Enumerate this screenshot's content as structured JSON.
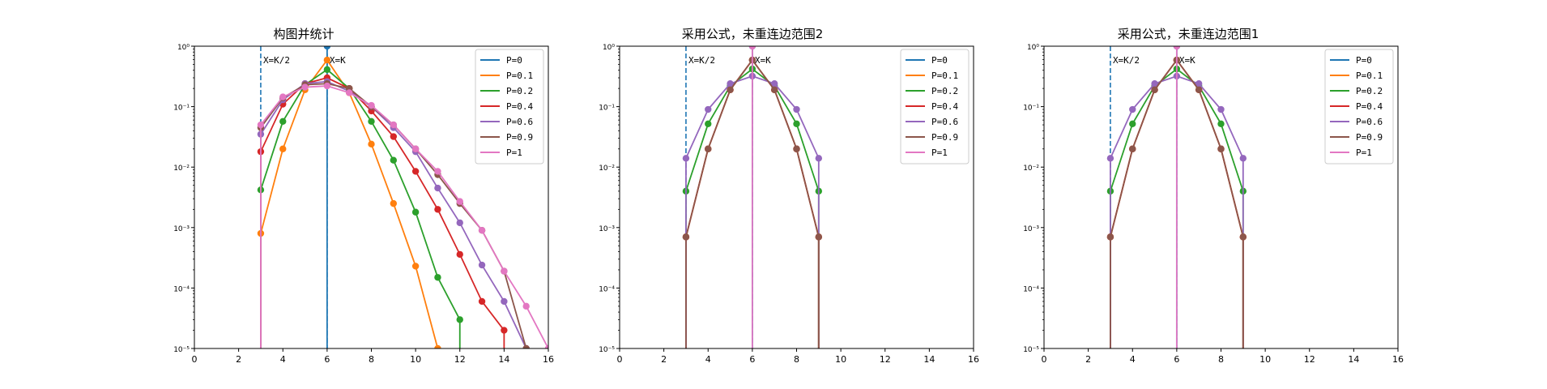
{
  "figure": {
    "background": "#ffffff"
  },
  "chart_data": [
    {
      "type": "line",
      "title": "构图并统计",
      "xlim": [
        0,
        16
      ],
      "y_scale": "log",
      "ylim": [
        1e-05,
        1
      ],
      "xticks": [
        "0",
        "2",
        "4",
        "6",
        "8",
        "10",
        "12",
        "14",
        "16"
      ],
      "yticks": [
        "10⁰",
        "10⁻¹",
        "10⁻²",
        "10⁻³",
        "10⁻⁴",
        "10⁻⁵"
      ],
      "vlines": [
        {
          "x": 3,
          "label": "X=K/2"
        },
        {
          "x": 6,
          "label": "X=K"
        }
      ],
      "legend_position": "upper right",
      "series": [
        {
          "name": "P=0",
          "color": "#1f77b4",
          "x": [
            6
          ],
          "y": [
            1.0
          ]
        },
        {
          "name": "P=0.1",
          "color": "#ff7f0e",
          "x": [
            3,
            4,
            5,
            6,
            7,
            8,
            9,
            10,
            11
          ],
          "y": [
            0.0008,
            0.02,
            0.19,
            0.59,
            0.17,
            0.024,
            0.0025,
            0.00023,
            1e-05
          ]
        },
        {
          "name": "P=0.2",
          "color": "#2ca02c",
          "x": [
            3,
            4,
            5,
            6,
            7,
            8,
            9,
            10,
            11,
            12
          ],
          "y": [
            0.0042,
            0.057,
            0.23,
            0.41,
            0.2,
            0.057,
            0.013,
            0.0018,
            0.00015,
            3e-05
          ]
        },
        {
          "name": "P=0.4",
          "color": "#d62728",
          "x": [
            3,
            4,
            5,
            6,
            7,
            8,
            9,
            10,
            11,
            12,
            13,
            14
          ],
          "y": [
            0.018,
            0.11,
            0.24,
            0.3,
            0.2,
            0.085,
            0.032,
            0.0085,
            0.002,
            0.00036,
            6e-05,
            2e-05
          ]
        },
        {
          "name": "P=0.6",
          "color": "#9467bd",
          "x": [
            3,
            4,
            5,
            6,
            7,
            8,
            9,
            10,
            11,
            12,
            13,
            14,
            15
          ],
          "y": [
            0.035,
            0.13,
            0.24,
            0.26,
            0.18,
            0.1,
            0.045,
            0.018,
            0.0045,
            0.0012,
            0.00024,
            6e-05,
            1e-05
          ]
        },
        {
          "name": "P=0.9",
          "color": "#8c564b",
          "x": [
            3,
            4,
            5,
            6,
            7,
            8,
            9,
            10,
            11,
            12,
            13,
            14,
            15
          ],
          "y": [
            0.045,
            0.14,
            0.23,
            0.24,
            0.2,
            0.1,
            0.05,
            0.02,
            0.0075,
            0.0025,
            0.0009,
            0.00019,
            1e-05
          ]
        },
        {
          "name": "P=1",
          "color": "#e377c2",
          "x": [
            3,
            4,
            5,
            6,
            7,
            8,
            9,
            10,
            11,
            12,
            13,
            14,
            15,
            16
          ],
          "y": [
            0.05,
            0.145,
            0.21,
            0.22,
            0.17,
            0.105,
            0.05,
            0.02,
            0.0085,
            0.0027,
            0.0009,
            0.00019,
            5e-05,
            1e-05
          ]
        }
      ]
    },
    {
      "type": "line",
      "title": "采用公式，未重连边范围2",
      "xlim": [
        0,
        16
      ],
      "y_scale": "log",
      "ylim": [
        1e-05,
        1
      ],
      "xticks": [
        "0",
        "2",
        "4",
        "6",
        "8",
        "10",
        "12",
        "14",
        "16"
      ],
      "yticks": [
        "10⁰",
        "10⁻¹",
        "10⁻²",
        "10⁻³",
        "10⁻⁴",
        "10⁻⁵"
      ],
      "vlines": [
        {
          "x": 3,
          "label": "X=K/2"
        },
        {
          "x": 6,
          "label": "X=K"
        }
      ],
      "legend_position": "upper right",
      "series": [
        {
          "name": "P=0",
          "color": "#1f77b4",
          "x": [
            6
          ],
          "y": [
            1.0
          ]
        },
        {
          "name": "P=0.1",
          "color": "#ff7f0e",
          "x": [
            3,
            4,
            5,
            6,
            7,
            8,
            9
          ],
          "y": [
            0.0007,
            0.02,
            0.19,
            0.59,
            0.19,
            0.02,
            0.0007
          ]
        },
        {
          "name": "P=0.2",
          "color": "#2ca02c",
          "x": [
            3,
            4,
            5,
            6,
            7,
            8,
            9
          ],
          "y": [
            0.004,
            0.052,
            0.22,
            0.42,
            0.22,
            0.052,
            0.004
          ]
        },
        {
          "name": "P=0.4",
          "color": "#d62728",
          "x": [
            3,
            4,
            5,
            6,
            7,
            8,
            9
          ],
          "y": [
            0.0007,
            0.02,
            0.19,
            0.59,
            0.19,
            0.02,
            0.0007
          ]
        },
        {
          "name": "P=0.6",
          "color": "#9467bd",
          "x": [
            3,
            4,
            5,
            6,
            7,
            8,
            9
          ],
          "y": [
            0.014,
            0.09,
            0.24,
            0.32,
            0.24,
            0.09,
            0.014
          ]
        },
        {
          "name": "P=0.9",
          "color": "#8c564b",
          "x": [
            3,
            4,
            5,
            6,
            7,
            8,
            9
          ],
          "y": [
            0.0007,
            0.02,
            0.19,
            0.59,
            0.19,
            0.02,
            0.0007
          ]
        },
        {
          "name": "P=1",
          "color": "#e377c2",
          "x": [
            6
          ],
          "y": [
            1.0
          ]
        }
      ]
    },
    {
      "type": "line",
      "title": "采用公式，未重连边范围1",
      "xlim": [
        0,
        16
      ],
      "y_scale": "log",
      "ylim": [
        1e-05,
        1
      ],
      "xticks": [
        "0",
        "2",
        "4",
        "6",
        "8",
        "10",
        "12",
        "14",
        "16"
      ],
      "yticks": [
        "10⁰",
        "10⁻¹",
        "10⁻²",
        "10⁻³",
        "10⁻⁴",
        "10⁻⁵"
      ],
      "vlines": [
        {
          "x": 3,
          "label": "X=K/2"
        },
        {
          "x": 6,
          "label": "X=K"
        }
      ],
      "legend_position": "upper right",
      "series": [
        {
          "name": "P=0",
          "color": "#1f77b4",
          "x": [
            6
          ],
          "y": [
            1.0
          ]
        },
        {
          "name": "P=0.1",
          "color": "#ff7f0e",
          "x": [
            3,
            4,
            5,
            6,
            7,
            8,
            9
          ],
          "y": [
            0.0007,
            0.02,
            0.19,
            0.59,
            0.19,
            0.02,
            0.0007
          ]
        },
        {
          "name": "P=0.2",
          "color": "#2ca02c",
          "x": [
            3,
            4,
            5,
            6,
            7,
            8,
            9
          ],
          "y": [
            0.004,
            0.052,
            0.22,
            0.42,
            0.22,
            0.052,
            0.004
          ]
        },
        {
          "name": "P=0.4",
          "color": "#d62728",
          "x": [
            3,
            4,
            5,
            6,
            7,
            8,
            9
          ],
          "y": [
            0.0007,
            0.02,
            0.19,
            0.59,
            0.19,
            0.02,
            0.0007
          ]
        },
        {
          "name": "P=0.6",
          "color": "#9467bd",
          "x": [
            3,
            4,
            5,
            6,
            7,
            8,
            9
          ],
          "y": [
            0.014,
            0.09,
            0.24,
            0.32,
            0.24,
            0.09,
            0.014
          ]
        },
        {
          "name": "P=0.9",
          "color": "#8c564b",
          "x": [
            3,
            4,
            5,
            6,
            7,
            8,
            9
          ],
          "y": [
            0.0007,
            0.02,
            0.19,
            0.59,
            0.19,
            0.02,
            0.0007
          ]
        },
        {
          "name": "P=1",
          "color": "#e377c2",
          "x": [
            6
          ],
          "y": [
            1.0
          ]
        }
      ]
    }
  ]
}
